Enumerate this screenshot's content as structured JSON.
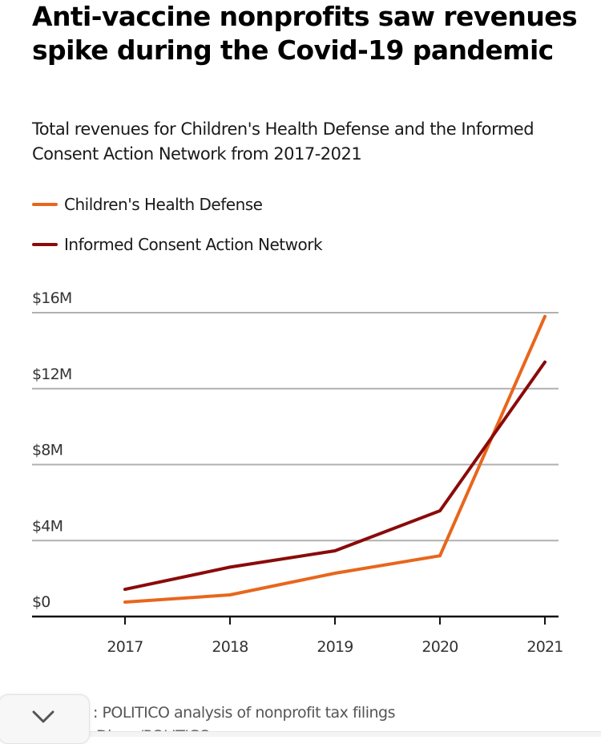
{
  "header": {
    "title": "Anti-vaccine nonprofits saw revenues spike during the Covid-19 pandemic",
    "subtitle": "Total revenues for Children's Health Defense and the Informed Consent Action Network from 2017-2021"
  },
  "legend": [
    {
      "label": "Children's Health Defense",
      "color": "#e8661c"
    },
    {
      "label": "Informed Consent Action Network",
      "color": "#8b0a0a"
    }
  ],
  "footer": {
    "source": ": POLITICO analysis of nonprofit tax filings",
    "credit_partial": "Diana/POLITICO",
    "collapse_icon": "chevron-down-icon"
  },
  "chart_data": {
    "type": "line",
    "title": "Anti-vaccine nonprofits saw revenues spike during the Covid-19 pandemic",
    "subtitle": "Total revenues for Children's Health Defense and the Informed Consent Action Network from 2017-2021",
    "xlabel": "",
    "ylabel": "",
    "x": [
      "2017",
      "2018",
      "2019",
      "2020",
      "2021"
    ],
    "ylim": [
      0,
      16
    ],
    "yticks": [
      0,
      4,
      8,
      12,
      16
    ],
    "ytick_labels": [
      "$0",
      "$4M",
      "$8M",
      "$12M",
      "$16M"
    ],
    "grid": true,
    "legend_position": "top-left",
    "series": [
      {
        "name": "Children's Health Defense",
        "color": "#e8661c",
        "values": [
          0.76,
          1.14,
          2.28,
          3.2,
          15.8
        ]
      },
      {
        "name": "Informed Consent Action Network",
        "color": "#8b0a0a",
        "values": [
          1.43,
          2.6,
          3.46,
          5.57,
          13.4
        ]
      }
    ]
  }
}
